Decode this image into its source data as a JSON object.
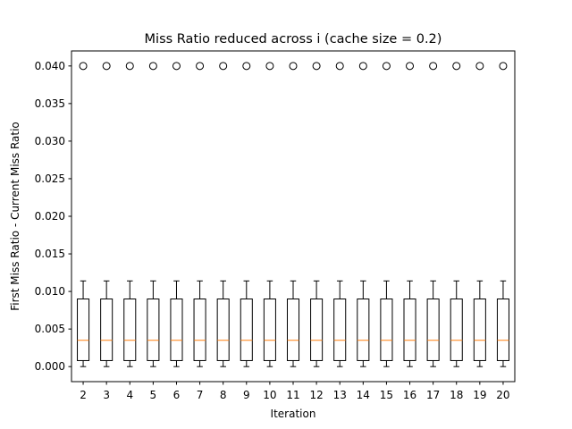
{
  "chart_data": {
    "type": "box",
    "title": "Miss Ratio reduced across i (cache size = 0.2)",
    "xlabel": "Iteration",
    "ylabel": "First Miss Ratio - Current Miss Ratio",
    "ylim": [
      -0.002,
      0.042
    ],
    "yticks": [
      "0.000",
      "0.005",
      "0.010",
      "0.015",
      "0.020",
      "0.025",
      "0.030",
      "0.035",
      "0.040"
    ],
    "categories": [
      "2",
      "3",
      "4",
      "5",
      "6",
      "7",
      "8",
      "9",
      "10",
      "11",
      "12",
      "13",
      "14",
      "15",
      "16",
      "17",
      "18",
      "19",
      "20"
    ],
    "boxes": {
      "whisker_low": 0.0,
      "q1": 0.0008,
      "median": 0.0035,
      "q3": 0.009,
      "whisker_high": 0.0114,
      "outliers": [
        0.04
      ]
    },
    "colors": {
      "box": "#000000",
      "median": "#ff7f0e"
    },
    "grid": false
  }
}
